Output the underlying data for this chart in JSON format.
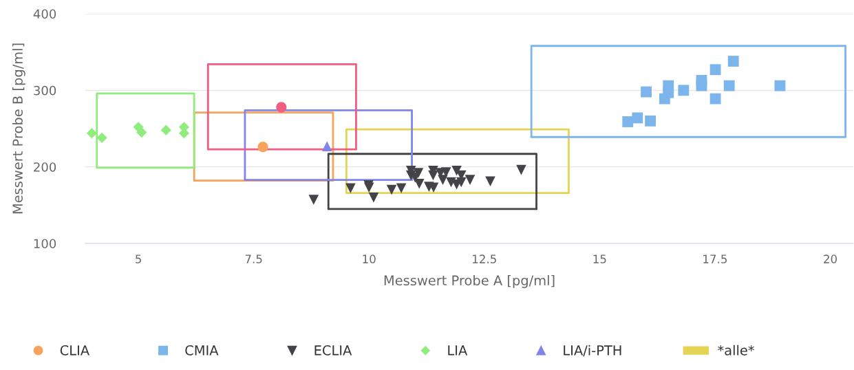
{
  "chart_data": {
    "type": "scatter",
    "xlabel": "Messwert Probe A [pg/ml]",
    "ylabel": "Messwert Probe B [pg/ml]",
    "xlim": [
      3.85,
      20.5
    ],
    "ylim": [
      100,
      400
    ],
    "xticks": [
      5,
      7.5,
      10,
      12.5,
      15,
      17.5,
      20
    ],
    "yticks": [
      100,
      200,
      300,
      400
    ],
    "grid": "y",
    "legend": "bottom",
    "series": [
      {
        "name": "CLIA",
        "marker": "circle",
        "color": "#f7a35c",
        "x": [
          7.7
        ],
        "values": [
          226
        ]
      },
      {
        "name": "CMIA",
        "marker": "square",
        "color": "#7cb5ec",
        "x": [
          15.61,
          15.82,
          16.1,
          16.01,
          16.41,
          16.49,
          16.49,
          16.82,
          17.21,
          17.21,
          17.51,
          17.51,
          17.81,
          17.9,
          18.91
        ],
        "values": [
          259,
          264,
          260,
          298,
          289,
          306,
          297,
          300,
          313,
          306,
          327,
          289,
          306,
          338,
          306
        ]
      },
      {
        "name": "ECLIA",
        "marker": "triangle_down",
        "color": "#434348",
        "x": [
          8.8,
          9.6,
          9.99,
          10.0,
          10.1,
          10.49,
          10.7,
          10.91,
          10.91,
          11.07,
          11.0,
          11.09,
          11.3,
          11.4,
          11.39,
          11.39,
          11.55,
          11.6,
          11.67,
          11.78,
          11.9,
          11.9,
          12.0,
          12.0,
          12.19,
          12.63,
          13.3
        ],
        "values": [
          157,
          172,
          176,
          173,
          160,
          170,
          172,
          195,
          189,
          192,
          186,
          178,
          174,
          173,
          195,
          189,
          192,
          183,
          193,
          180,
          195,
          177,
          189,
          180,
          183,
          181,
          196
        ]
      },
      {
        "name": "LIA",
        "marker": "diamond",
        "color": "#90ed7d",
        "x": [
          3.99,
          4.21,
          5.0,
          5.07,
          5.6,
          5.99,
          5.99
        ],
        "values": [
          244,
          238,
          252,
          245,
          248,
          252,
          244
        ]
      },
      {
        "name": "LIA/i-PTH",
        "marker": "triangle",
        "color": "#8085e9",
        "x": [
          9.09
        ],
        "values": [
          227
        ]
      },
      {
        "marker": "circle",
        "color": "#f15c80",
        "x": [
          8.1
        ],
        "values": [
          278
        ]
      },
      {
        "name": "*alle*",
        "type": "line",
        "color": "#e4d354",
        "x": [
          9.51,
          9.51,
          14.33,
          14.33
        ],
        "values": [
          166,
          249,
          249,
          166
        ]
      },
      {
        "type": "line",
        "color": "#e4d354",
        "x": [
          9.51,
          14.33
        ],
        "values": [
          166,
          166
        ]
      },
      {
        "type": "line",
        "color": "#f7a35c",
        "x": [
          6.21,
          6.21,
          9.22,
          9.22
        ],
        "values": [
          182,
          271,
          271,
          182
        ]
      },
      {
        "type": "line",
        "color": "#f7a35c",
        "x": [
          6.21,
          9.22
        ],
        "values": [
          182,
          182
        ]
      },
      {
        "type": "line",
        "color": "#7cb5ec",
        "x": [
          13.52,
          13.52,
          20.33,
          20.33
        ],
        "values": [
          239,
          358,
          358,
          239
        ]
      },
      {
        "type": "line",
        "color": "#7cb5ec",
        "x": [
          13.52,
          20.33
        ],
        "values": [
          239,
          239
        ]
      },
      {
        "type": "line",
        "color": "#434348",
        "x": [
          9.12,
          9.12,
          13.63,
          13.63
        ],
        "values": [
          145,
          217,
          217,
          145
        ]
      },
      {
        "type": "line",
        "color": "#434348",
        "x": [
          9.12,
          13.63
        ],
        "values": [
          145,
          145
        ]
      },
      {
        "type": "line",
        "color": "#90ed7d",
        "x": [
          4.1,
          4.1,
          6.21,
          6.21
        ],
        "values": [
          199,
          296,
          296,
          199
        ]
      },
      {
        "type": "line",
        "color": "#90ed7d",
        "x": [
          4.1,
          6.21
        ],
        "values": [
          199,
          199
        ]
      },
      {
        "type": "line",
        "color": "#8085e9",
        "x": [
          7.31,
          7.31,
          10.93,
          10.93
        ],
        "values": [
          183,
          274,
          274,
          183
        ]
      },
      {
        "type": "line",
        "color": "#8085e9",
        "x": [
          7.31,
          10.93
        ],
        "values": [
          183,
          183
        ]
      },
      {
        "type": "line",
        "color": "#f15c80",
        "x": [
          6.51,
          6.51,
          9.72,
          9.72
        ],
        "values": [
          223,
          334,
          334,
          223
        ]
      },
      {
        "type": "line",
        "color": "#f15c80",
        "x": [
          6.51,
          9.72
        ],
        "values": [
          223,
          223
        ]
      }
    ]
  }
}
